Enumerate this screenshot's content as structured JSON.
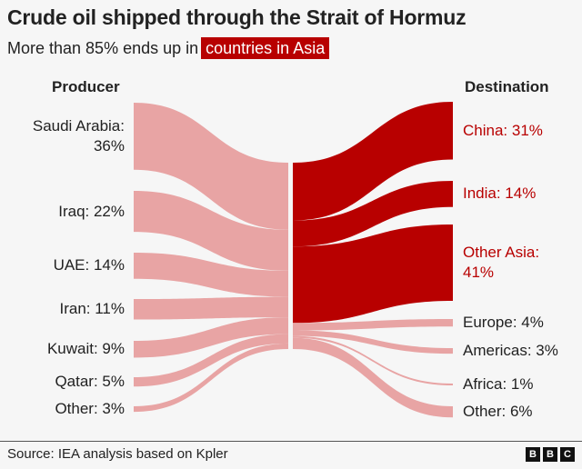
{
  "title": "Crude oil shipped through the Strait of Hormuz",
  "subtitle_prefix": "More than 85% ends up in",
  "subtitle_highlight": "countries in Asia",
  "source": "Source: IEA analysis based on Kpler",
  "logo": [
    "B",
    "B",
    "C"
  ],
  "colors": {
    "asia": "#b80000",
    "other": "#e8a4a4",
    "asia_text": "#b80000"
  },
  "chart_data": {
    "type": "sankey",
    "title": "Crude oil shipped through the Strait of Hormuz",
    "left_header": "Producer",
    "right_header": "Destination",
    "unit": "%",
    "sources": [
      {
        "name": "Saudi Arabia",
        "value": 36,
        "label": "Saudi Arabia:",
        "value_label": "36%"
      },
      {
        "name": "Iraq",
        "value": 22,
        "label": "Iraq: 22%"
      },
      {
        "name": "UAE",
        "value": 14,
        "label": "UAE: 14%"
      },
      {
        "name": "Iran",
        "value": 11,
        "label": "Iran: 11%"
      },
      {
        "name": "Kuwait",
        "value": 9,
        "label": "Kuwait: 9%"
      },
      {
        "name": "Qatar",
        "value": 5,
        "label": "Qatar: 5%"
      },
      {
        "name": "Other",
        "value": 3,
        "label": "Other: 3%"
      }
    ],
    "destinations": [
      {
        "name": "China",
        "value": 31,
        "label": "China: 31%",
        "asia": true
      },
      {
        "name": "India",
        "value": 14,
        "label": "India: 14%",
        "asia": true
      },
      {
        "name": "Other Asia",
        "value": 41,
        "label": "Other Asia:",
        "value_label": "41%",
        "asia": true
      },
      {
        "name": "Europe",
        "value": 4,
        "label": "Europe: 4%",
        "asia": false
      },
      {
        "name": "Americas",
        "value": 3,
        "label": "Americas: 3%",
        "asia": false
      },
      {
        "name": "Africa",
        "value": 1,
        "label": "Africa: 1%",
        "asia": false
      },
      {
        "name": "Other",
        "value": 6,
        "label": "Other: 6%",
        "asia": false
      }
    ]
  }
}
